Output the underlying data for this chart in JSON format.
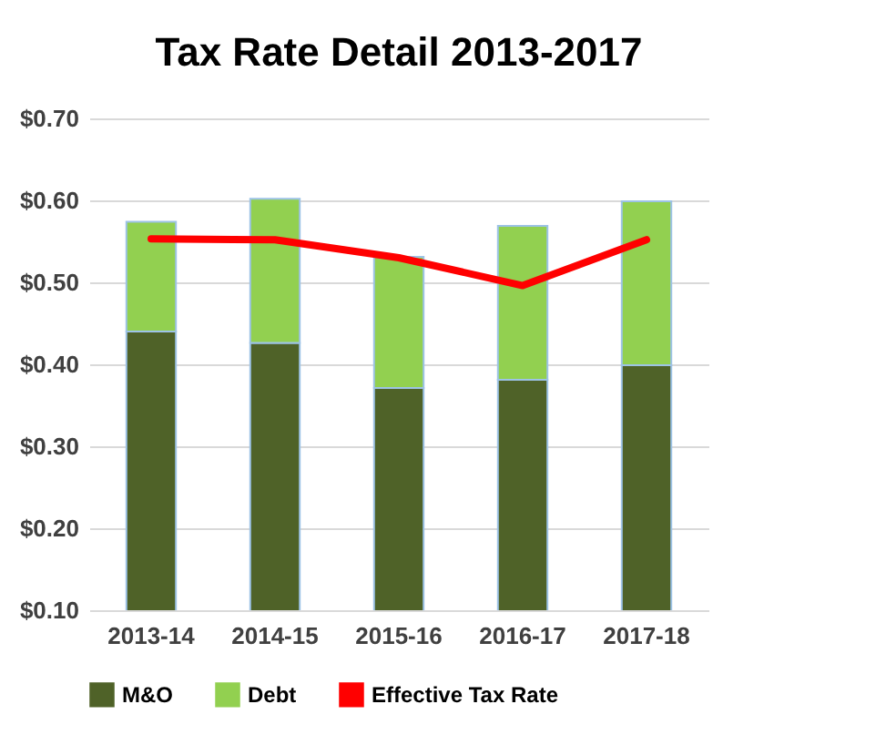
{
  "chart_data": {
    "type": "bar",
    "title": "Tax Rate Detail 2013-2017",
    "categories": [
      "2013-14",
      "2014-15",
      "2015-16",
      "2016-17",
      "2017-18"
    ],
    "stacked": true,
    "series": [
      {
        "name": "M&O",
        "color": "#4f6228",
        "values": [
          0.44,
          0.426,
          0.371,
          0.381,
          0.399
        ]
      },
      {
        "name": "Debt",
        "color": "#92d050",
        "values": [
          0.134,
          0.176,
          0.16,
          0.188,
          0.2
        ]
      },
      {
        "name": "Effective Tax Rate",
        "type": "line",
        "color": "#ff0000",
        "values": [
          0.553,
          0.552,
          0.53,
          0.496,
          0.552
        ]
      }
    ],
    "ylim": [
      0.1,
      0.7
    ],
    "yticks": [
      {
        "value": 0.1,
        "label": "$0.10"
      },
      {
        "value": 0.2,
        "label": "$0.20"
      },
      {
        "value": 0.3,
        "label": "$0.30"
      },
      {
        "value": 0.4,
        "label": "$0.40"
      },
      {
        "value": 0.5,
        "label": "$0.50"
      },
      {
        "value": 0.6,
        "label": "$0.60"
      },
      {
        "value": 0.7,
        "label": "$0.70"
      }
    ],
    "grid": "y",
    "legend": "bottom"
  }
}
